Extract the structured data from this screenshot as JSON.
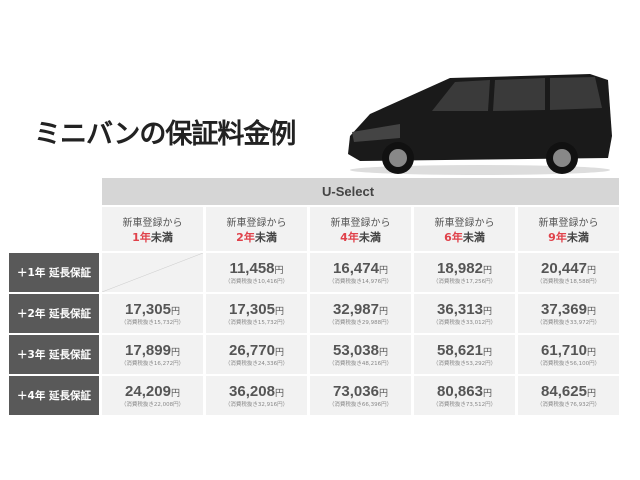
{
  "title": "ミニバンの保証料金例",
  "table": {
    "plan": "U-Select",
    "columns": [
      {
        "prefix": "新車登録から",
        "years": "1年",
        "suffix": "未満"
      },
      {
        "prefix": "新車登録から",
        "years": "2年",
        "suffix": "未満"
      },
      {
        "prefix": "新車登録から",
        "years": "4年",
        "suffix": "未満"
      },
      {
        "prefix": "新車登録から",
        "years": "6年",
        "suffix": "未満"
      },
      {
        "prefix": "新車登録から",
        "years": "9年",
        "suffix": "未満"
      }
    ],
    "currency": "円",
    "rows": [
      {
        "label": "＋1年 延長保証",
        "cells": [
          null,
          {
            "price": "11,458",
            "tax": "（消費税抜き10,416円）"
          },
          {
            "price": "16,474",
            "tax": "（消費税抜き14,976円）"
          },
          {
            "price": "18,982",
            "tax": "（消費税抜き17,256円）"
          },
          {
            "price": "20,447",
            "tax": "（消費税抜き18,588円）"
          }
        ]
      },
      {
        "label": "＋2年 延長保証",
        "cells": [
          {
            "price": "17,305",
            "tax": "（消費税抜き15,732円）"
          },
          {
            "price": "17,305",
            "tax": "（消費税抜き15,732円）"
          },
          {
            "price": "32,987",
            "tax": "（消費税抜き29,988円）"
          },
          {
            "price": "36,313",
            "tax": "（消費税抜き33,012円）"
          },
          {
            "price": "37,369",
            "tax": "（消費税抜き33,972円）"
          }
        ]
      },
      {
        "label": "＋3年 延長保証",
        "cells": [
          {
            "price": "17,899",
            "tax": "（消費税抜き16,272円）"
          },
          {
            "price": "26,770",
            "tax": "（消費税抜き24,336円）"
          },
          {
            "price": "53,038",
            "tax": "（消費税抜き48,216円）"
          },
          {
            "price": "58,621",
            "tax": "（消費税抜き53,292円）"
          },
          {
            "price": "61,710",
            "tax": "（消費税抜き56,100円）"
          }
        ]
      },
      {
        "label": "＋4年 延長保証",
        "cells": [
          {
            "price": "24,209",
            "tax": "（消費税抜き22,008円）"
          },
          {
            "price": "36,208",
            "tax": "（消費税抜き32,916円）"
          },
          {
            "price": "73,036",
            "tax": "（消費税抜き66,396円）"
          },
          {
            "price": "80,863",
            "tax": "（消費税抜き73,512円）"
          },
          {
            "price": "84,625",
            "tax": "（消費税抜き76,932円）"
          }
        ]
      }
    ]
  },
  "colors": {
    "accent": "#e0414a",
    "row_label_bg": "#595959",
    "cell_bg": "#f2f2f2",
    "header_bg": "#d6d6d6"
  }
}
